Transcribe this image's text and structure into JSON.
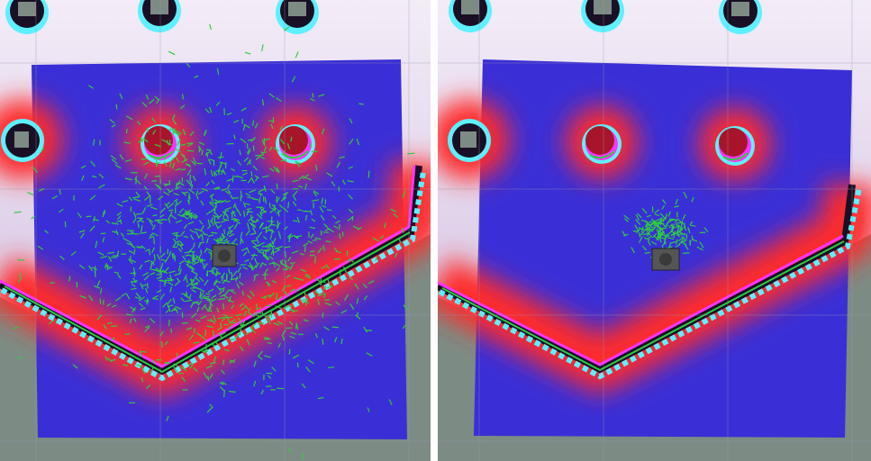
{
  "app": {
    "title": ""
  },
  "views": [
    {
      "id": "left",
      "state": "initial-localization",
      "particles": {
        "spread": "wide",
        "count_shown": 1200
      },
      "colors": {
        "costmap_low": "#3a2fd6",
        "costmap_high": "#ff2a2a",
        "inscribed": "#ff33ff",
        "lethal": "#5ef0ff",
        "particles": "#2ecc40",
        "occupied": "#1a0f24",
        "background": "#c9b4d9",
        "unknown": "#7c8c84"
      }
    },
    {
      "id": "right",
      "state": "converged-localization",
      "particles": {
        "spread": "tight",
        "count_shown": 160
      },
      "colors": {
        "costmap_low": "#3a2fd6",
        "costmap_high": "#ff2a2a",
        "inscribed": "#ff33ff",
        "lethal": "#5ef0ff",
        "particles": "#2ecc40",
        "occupied": "#1a0f24",
        "background": "#c9b4d9",
        "unknown": "#7c8c84"
      }
    }
  ],
  "icons": {
    "robot": "robot-footprint-icon",
    "obstacle": "pillar-obstacle-icon"
  }
}
